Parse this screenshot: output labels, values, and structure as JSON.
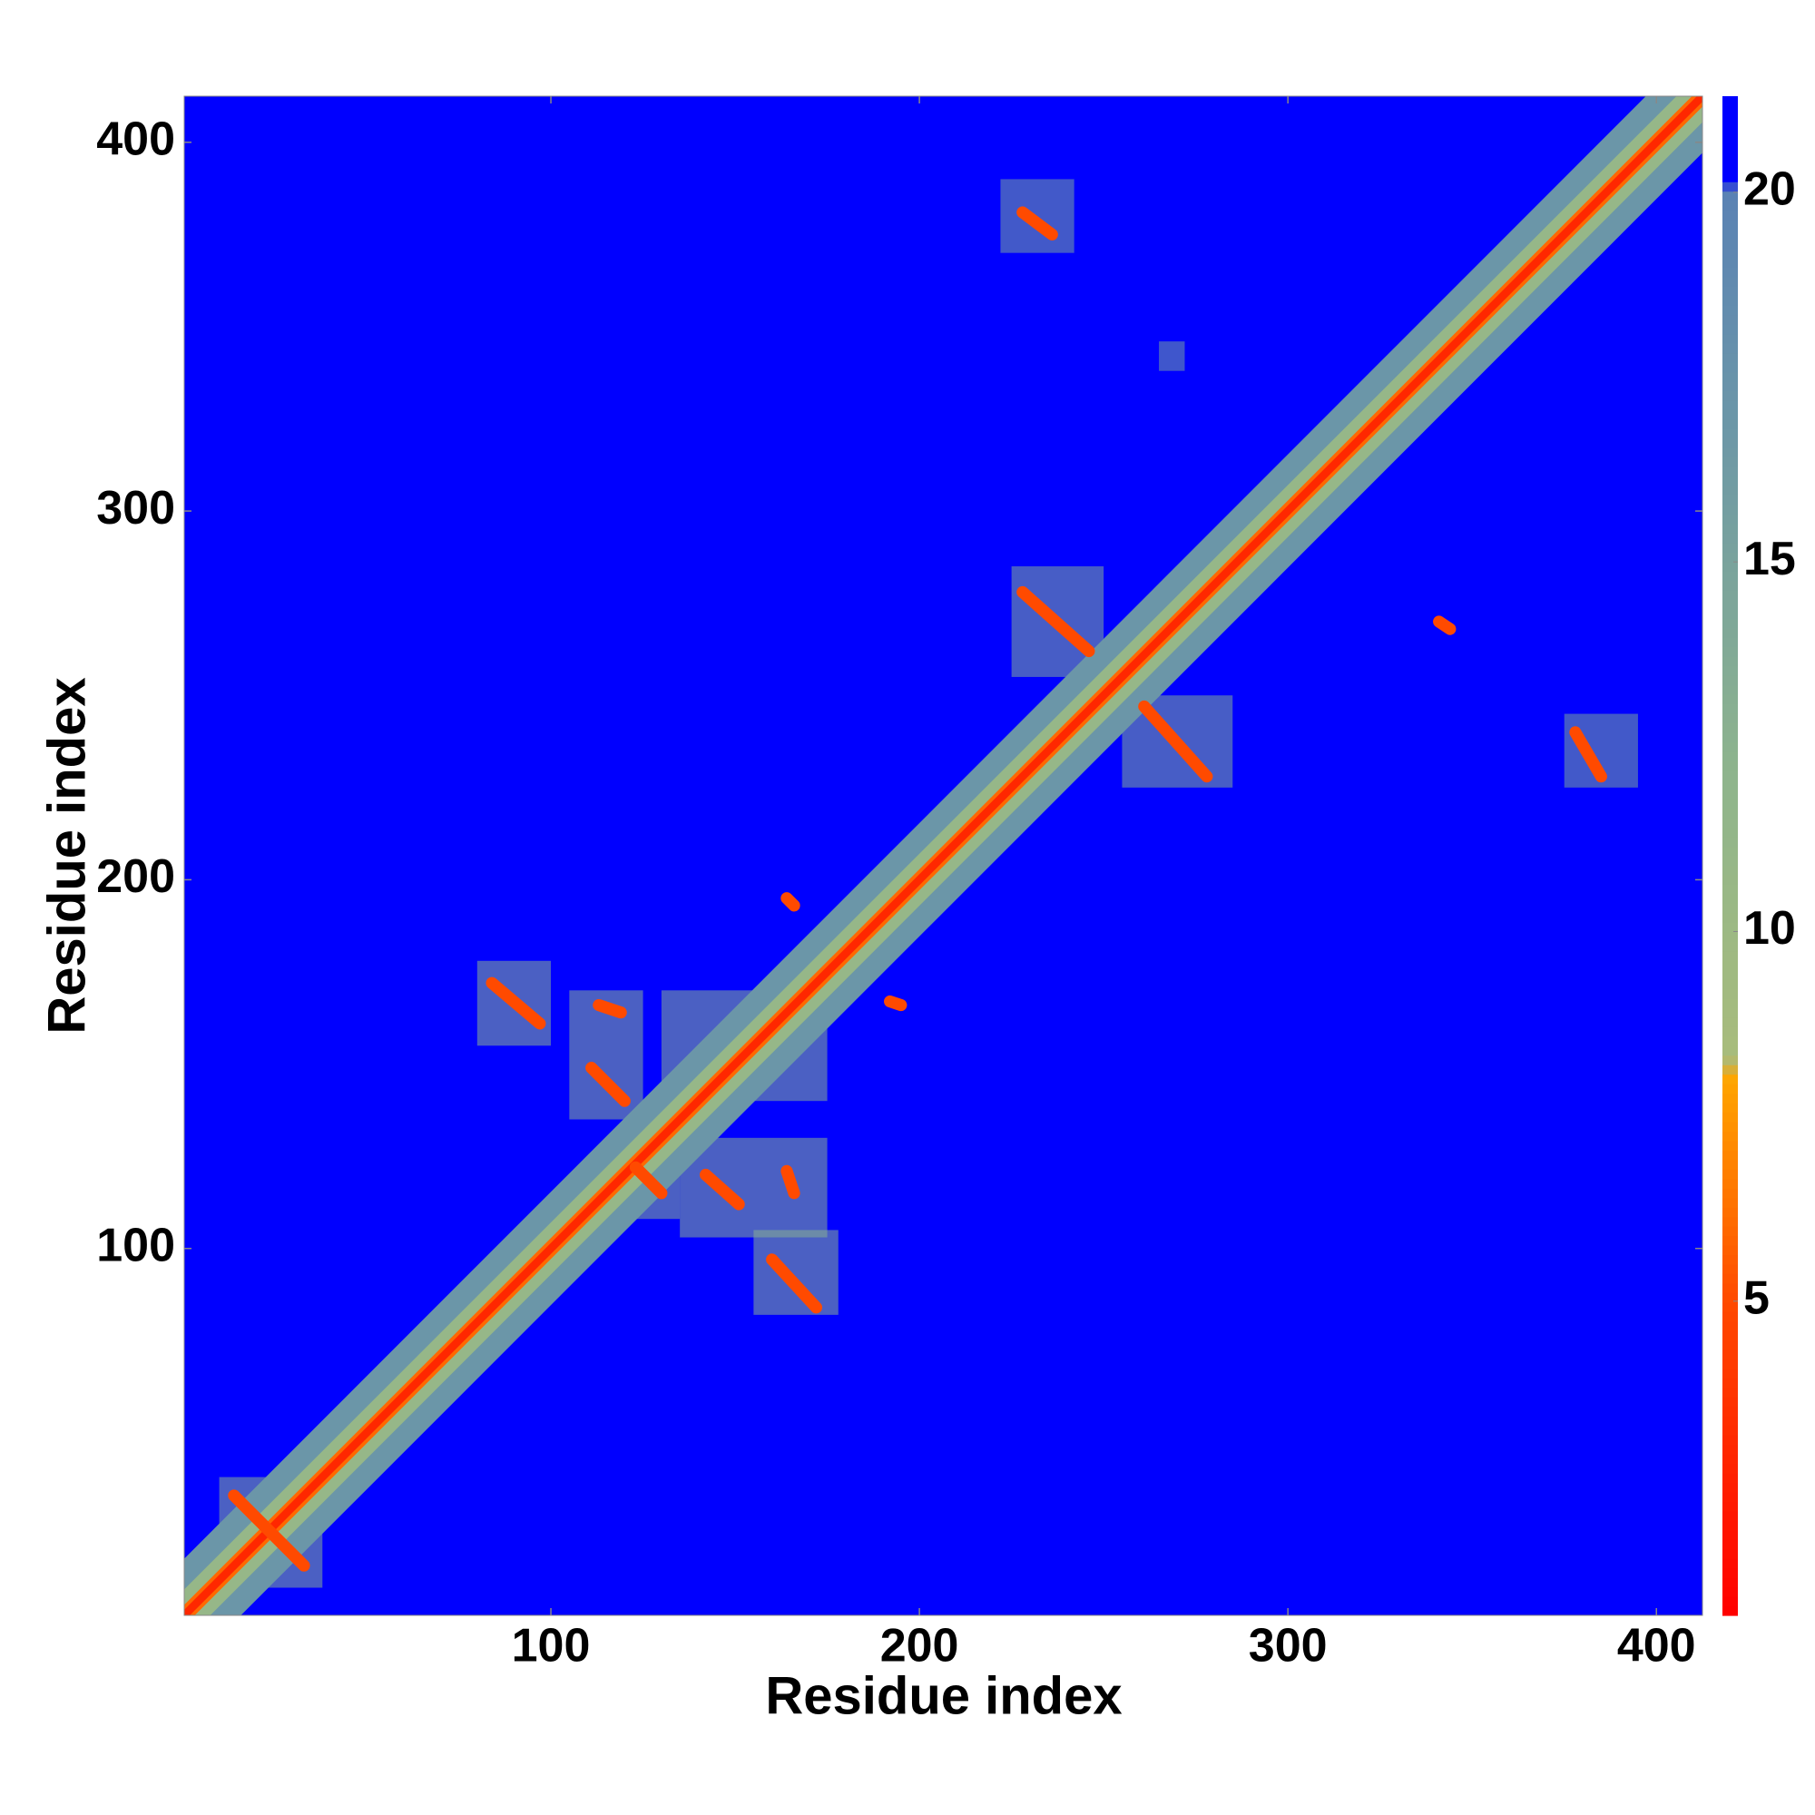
{
  "chart_data": {
    "type": "heatmap",
    "xlabel": "Residue index",
    "ylabel": "Residue index",
    "xlim": [
      0.5,
      412.5
    ],
    "ylim": [
      0.5,
      412.5
    ],
    "xticks": [
      100,
      200,
      300,
      400
    ],
    "yticks": [
      100,
      200,
      300,
      400
    ],
    "zlim": [
      0.75,
      21.3
    ],
    "zticks": [
      5,
      10,
      15,
      20
    ],
    "background_color": "#0000ff",
    "colormap": [
      {
        "value": 0.75,
        "color": "#ff0000"
      },
      {
        "value": 5,
        "color": "#ff4a00"
      },
      {
        "value": 8,
        "color": "#ffa500"
      },
      {
        "value": 8.3,
        "color": "#a8bc7c"
      },
      {
        "value": 12,
        "color": "#8fb58c"
      },
      {
        "value": 17,
        "color": "#6b96a8"
      },
      {
        "value": 20,
        "color": "#5a82b4"
      },
      {
        "value": 20.2,
        "color": "#0000ff"
      },
      {
        "value": 21.3,
        "color": "#0000ff"
      }
    ],
    "patches": [
      {
        "x": [
          80,
          100
        ],
        "y": [
          155,
          178
        ],
        "value": 13
      },
      {
        "x": [
          105,
          125
        ],
        "y": [
          135,
          170
        ],
        "value": 13
      },
      {
        "x": [
          130,
          175
        ],
        "y": [
          140,
          170
        ],
        "value": 13
      },
      {
        "x": [
          118,
          135
        ],
        "y": [
          108,
          130
        ],
        "value": 13
      },
      {
        "x": [
          135,
          175
        ],
        "y": [
          103,
          130
        ],
        "value": 13
      },
      {
        "x": [
          155,
          178
        ],
        "y": [
          82,
          105
        ],
        "value": 13
      },
      {
        "x": [
          10,
          38
        ],
        "y": [
          8,
          38
        ],
        "value": 13
      },
      {
        "x": [
          225,
          250
        ],
        "y": [
          255,
          285
        ],
        "value": 14
      },
      {
        "x": [
          255,
          285
        ],
        "y": [
          225,
          250
        ],
        "value": 14
      },
      {
        "x": [
          222,
          242
        ],
        "y": [
          370,
          390
        ],
        "value": 15
      },
      {
        "x": [
          375,
          395
        ],
        "y": [
          225,
          245
        ],
        "value": 15
      },
      {
        "x": [
          265,
          272
        ],
        "y": [
          338,
          346
        ],
        "value": 16
      }
    ],
    "features": [
      {
        "x": [
          1,
          412
        ],
        "y": [
          1,
          412
        ],
        "value": 17
      },
      {
        "x": [
          1,
          412
        ],
        "y": [
          1,
          412
        ],
        "value": 11
      },
      {
        "x": [
          1,
          412
        ],
        "y": [
          1,
          412
        ],
        "value": 6
      },
      {
        "x": [
          1,
          412
        ],
        "y": [
          1,
          412
        ],
        "value": 3
      },
      {
        "x": [
          14,
          33
        ],
        "y": [
          33,
          14
        ],
        "value": 5
      },
      {
        "x": [
          84,
          97
        ],
        "y": [
          172,
          161
        ],
        "value": 5
      },
      {
        "x": [
          111,
          120
        ],
        "y": [
          149,
          140
        ],
        "value": 5
      },
      {
        "x": [
          113,
          119
        ],
        "y": [
          166,
          164
        ],
        "value": 5
      },
      {
        "x": [
          123,
          130
        ],
        "y": [
          122,
          115
        ],
        "value": 5
      },
      {
        "x": [
          142,
          151
        ],
        "y": [
          120,
          112
        ],
        "value": 5
      },
      {
        "x": [
          160,
          172
        ],
        "y": [
          97,
          84
        ],
        "value": 5
      },
      {
        "x": [
          164,
          166
        ],
        "y": [
          121,
          115
        ],
        "value": 5
      },
      {
        "x": [
          228,
          246
        ],
        "y": [
          278,
          262
        ],
        "value": 5
      },
      {
        "x": [
          261,
          278
        ],
        "y": [
          247,
          228
        ],
        "value": 5
      },
      {
        "x": [
          228,
          236
        ],
        "y": [
          381,
          375
        ],
        "value": 5
      },
      {
        "x": [
          378,
          385
        ],
        "y": [
          240,
          228
        ],
        "value": 5
      },
      {
        "x": [
          341,
          344
        ],
        "y": [
          270,
          268
        ],
        "value": 5
      },
      {
        "x": [
          164,
          166
        ],
        "y": [
          195,
          193
        ],
        "value": 5
      },
      {
        "x": [
          192,
          195
        ],
        "y": [
          167,
          166
        ],
        "value": 5
      }
    ]
  }
}
